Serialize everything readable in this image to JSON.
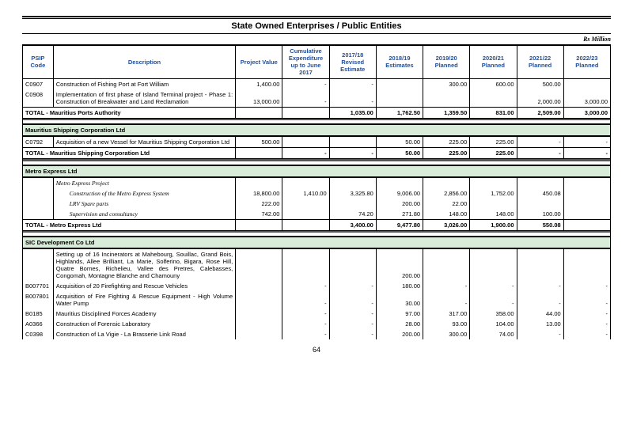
{
  "title": "State Owned Enterprises / Public Entities",
  "currency": "Rs Million",
  "pageNumber": "64",
  "headers": [
    "PSIP Code",
    "Description",
    "Project Value",
    "Cumulative Expenditure up to June 2017",
    "2017/18 Revised Estimate",
    "2018/19 Estimates",
    "2019/20 Planned",
    "2020/21 Planned",
    "2021/22 Planned",
    "2022/23 Planned"
  ],
  "mpa": {
    "rows": [
      {
        "code": "C0907",
        "desc": "Construction of Fishing Port at Fort William",
        "v": [
          "1,400.00",
          "-",
          "-",
          "",
          "300.00",
          "600.00",
          "500.00",
          ""
        ]
      },
      {
        "code": "C0908",
        "desc": "Implementation of first phase of Island Terminal project - Phase 1: Construction of Breakwater and Land Reclamation",
        "v": [
          "13,000.00",
          "-",
          "-",
          "",
          "",
          "",
          "2,000.00",
          "3,000.00"
        ]
      }
    ],
    "totalLabel": "TOTAL - Mauritius Ports Authority",
    "totals": [
      "",
      "",
      "1,035.00",
      "1,762.50",
      "1,359.50",
      "831.00",
      "2,509.00",
      "3,000.00"
    ]
  },
  "msc": {
    "name": "Mauritius Shipping Corporation Ltd",
    "rows": [
      {
        "code": "C0792",
        "desc": "Acquisition of a new Vessel for Mauritius Shipping Corporation Ltd",
        "v": [
          "500.00",
          "",
          "",
          "50.00",
          "225.00",
          "225.00",
          "-",
          "-"
        ]
      }
    ],
    "totalLabel": "TOTAL - Mauritius Shipping Corporation Ltd",
    "totals": [
      "",
      "-",
      "-",
      "50.00",
      "225.00",
      "225.00",
      "-",
      "-"
    ]
  },
  "metro": {
    "name": "Metro Express Ltd",
    "head": "Metro Express Project",
    "rows": [
      {
        "desc": "Construction of the Metro Express System",
        "v": [
          "18,800.00",
          "1,410.00",
          "3,325.80",
          "9,006.00",
          "2,856.00",
          "1,752.00",
          "450.08",
          ""
        ]
      },
      {
        "desc": "LRV Spare parts",
        "v": [
          "222.00",
          "",
          "",
          "200.00",
          "22.00",
          "",
          "",
          ""
        ]
      },
      {
        "desc": "Supervision and consultancy",
        "v": [
          "742.00",
          "",
          "74.20",
          "271.80",
          "148.00",
          "148.00",
          "100.00",
          ""
        ]
      }
    ],
    "totalLabel": "TOTAL - Metro Express Ltd",
    "totals": [
      "",
      "",
      "3,400.00",
      "9,477.80",
      "3,026.00",
      "1,900.00",
      "550.08",
      ""
    ]
  },
  "sic": {
    "name": "SIC Development Co Ltd",
    "rows": [
      {
        "code": "",
        "desc": "Setting up of 16 Incinerators at Mahebourg, Souillac, Grand Bois, Highlands, Allee Brilliant, La Marie, Solferino, Bigara, Rose Hill, Quatre Bornes, Richelieu, Vallee des Pretres, Calebasses, Congomah, Montagne Blanche and Chamouny",
        "v": [
          "",
          "",
          "",
          "200.00",
          "",
          "",
          "",
          ""
        ]
      },
      {
        "code": "B007701",
        "desc": "Acquisition of 20 Firefighting and Rescue Vehicles",
        "v": [
          "",
          "-",
          "-",
          "180.00",
          "-",
          "-",
          "-",
          "-"
        ]
      },
      {
        "code": "B007801",
        "desc": "Acquisition of Fire Fighting & Rescue Equipment - High Volume Water Pump",
        "v": [
          "",
          "-",
          "-",
          "30.00",
          "-",
          "-",
          "-",
          "-"
        ]
      },
      {
        "code": "B0185",
        "desc": "Mauritius Disciplined Forces Academy",
        "v": [
          "",
          "-",
          "-",
          "97.00",
          "317.00",
          "358.00",
          "44.00",
          "-"
        ]
      },
      {
        "code": "A0366",
        "desc": "Construction of Forensic Laboratory",
        "v": [
          "",
          "-",
          "-",
          "28.00",
          "93.00",
          "104.00",
          "13.00",
          "-"
        ]
      },
      {
        "code": "C0398",
        "desc": "Construction of La Vigie - La Brasserie Link Road",
        "v": [
          "",
          "-",
          "-",
          "200.00",
          "300.00",
          "74.00",
          "-",
          "-"
        ]
      }
    ]
  }
}
